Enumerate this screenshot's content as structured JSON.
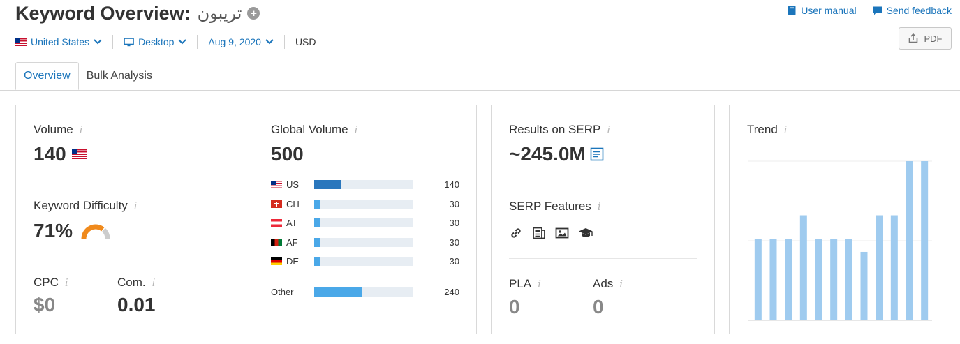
{
  "header": {
    "title": "Keyword Overview:",
    "keyword": "تريبون",
    "user_manual": "User manual",
    "send_feedback": "Send feedback",
    "pdf": "PDF"
  },
  "filters": {
    "country": "United States",
    "device": "Desktop",
    "date": "Aug 9, 2020",
    "currency": "USD"
  },
  "tabs": [
    {
      "label": "Overview",
      "active": true
    },
    {
      "label": "Bulk Analysis",
      "active": false
    }
  ],
  "volume_card": {
    "volume_label": "Volume",
    "volume_value": "140",
    "kd_label": "Keyword Difficulty",
    "kd_value": "71%",
    "kd_percent": 71,
    "cpc_label": "CPC",
    "cpc_value": "$0",
    "com_label": "Com.",
    "com_value": "0.01"
  },
  "global_card": {
    "label": "Global Volume",
    "value": "500",
    "rows": [
      {
        "code": "US",
        "value": "140",
        "fraction": 0.28,
        "flag": "flag-us"
      },
      {
        "code": "CH",
        "value": "30",
        "fraction": 0.06,
        "flag": "flag-ch"
      },
      {
        "code": "AT",
        "value": "30",
        "fraction": 0.06,
        "flag": "flag-at"
      },
      {
        "code": "AF",
        "value": "30",
        "fraction": 0.06,
        "flag": "flag-af"
      },
      {
        "code": "DE",
        "value": "30",
        "fraction": 0.06,
        "flag": "flag-de"
      }
    ],
    "other_label": "Other",
    "other_value": "240",
    "other_fraction": 0.48
  },
  "serp_card": {
    "results_label": "Results on SERP",
    "results_value": "~245.0M",
    "features_label": "SERP Features",
    "features": [
      "link-icon",
      "news-icon",
      "image-icon",
      "knowledge-icon"
    ],
    "pla_label": "PLA",
    "pla_value": "0",
    "ads_label": "Ads",
    "ads_value": "0"
  },
  "trend_card": {
    "label": "Trend",
    "values": [
      0.51,
      0.51,
      0.51,
      0.66,
      0.51,
      0.51,
      0.51,
      0.43,
      0.66,
      0.66,
      1.0,
      1.0
    ]
  },
  "colors": {
    "accent": "#1b75bb",
    "us_bar": "#2a77bd",
    "country_bar": "#4aa8e8",
    "bar_track": "#e7edf3",
    "trend_bar": "#9fcbef",
    "kd_gauge": "#f08a1c"
  }
}
